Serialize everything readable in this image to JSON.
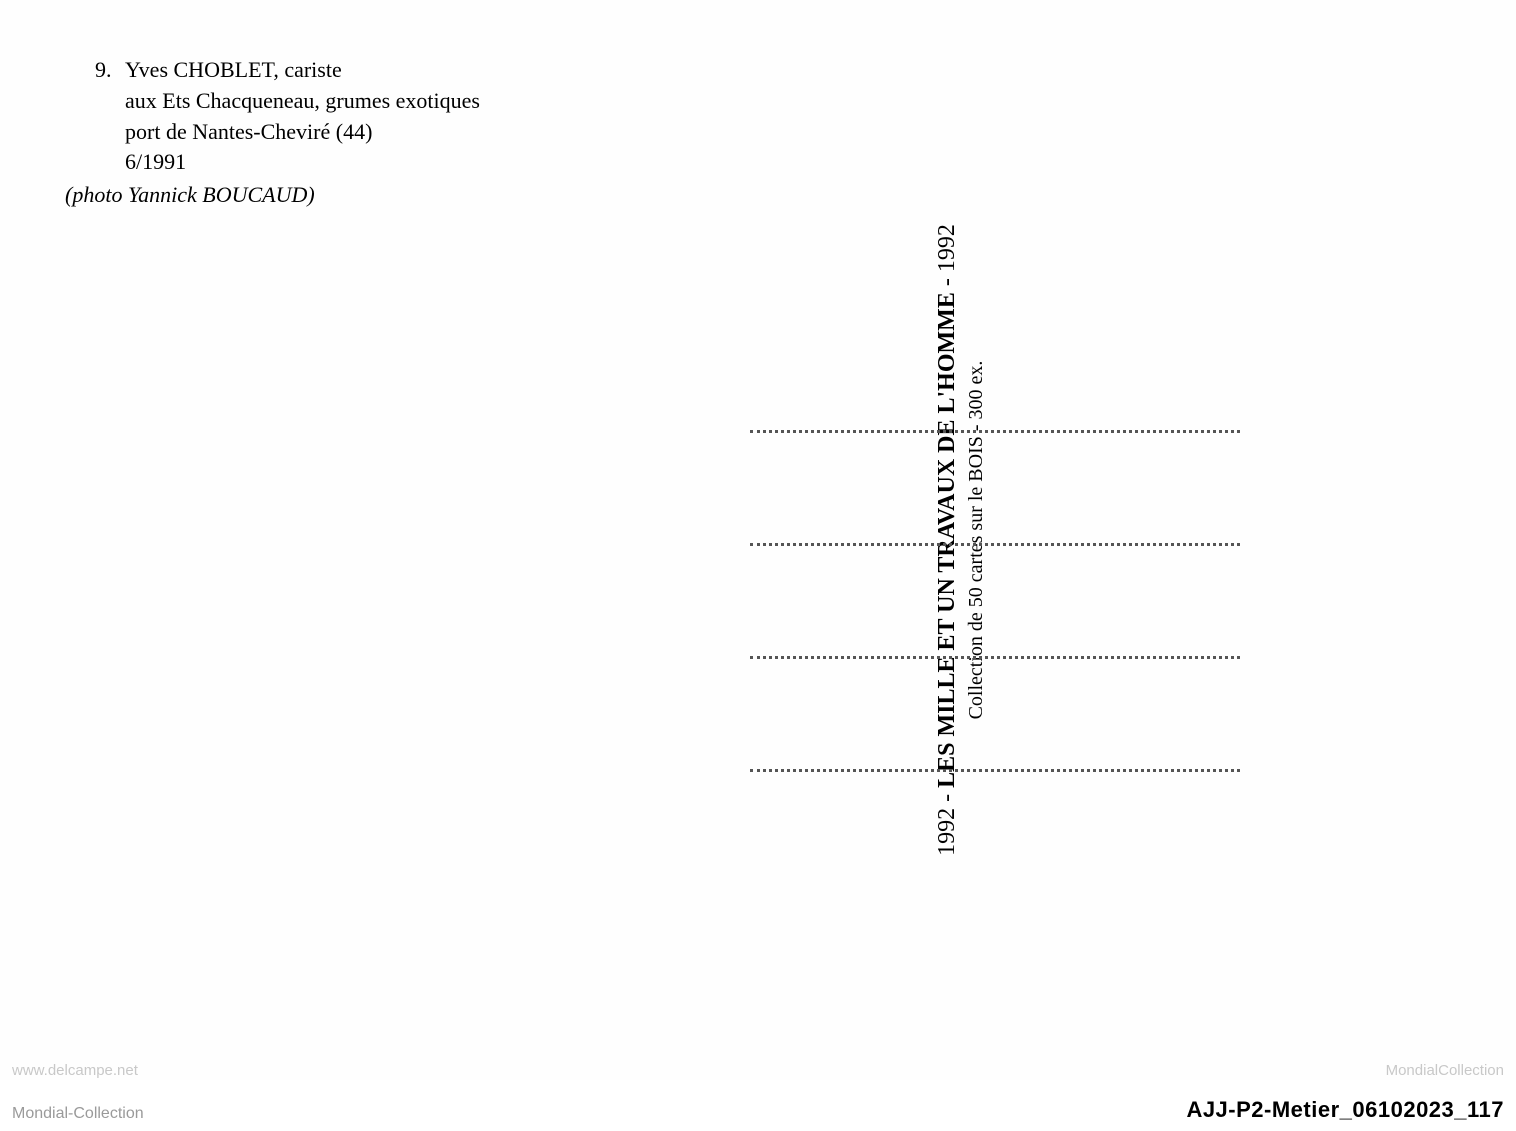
{
  "caption": {
    "number": "9.",
    "line1_part1": "Yves CHOBLET, cariste",
    "line2": "aux Ets Chacqueneau, grumes exotiques",
    "line3": "port de Nantes-Cheviré (44)",
    "line4": "6/1991",
    "photo_credit": "(photo Yannick BOUCAUD)"
  },
  "center": {
    "year_prefix": "1992 - ",
    "title": "LES MILLE ET UN TRAVAUX DE L'HOMME",
    "year_suffix": " - 1992",
    "subtitle": "Collection de 50 cartes sur le BOIS - 300 ex."
  },
  "address_lines": {
    "count": 4,
    "line_spacing_px": 110,
    "dot_color": "#555555"
  },
  "watermark": {
    "left": "www.delcampe.net",
    "right": "MondialCollection"
  },
  "footer": {
    "left": "Mondial-Collection",
    "right": "AJJ-P2-Metier_06102023_117"
  },
  "styling": {
    "background_color": "#ffffff",
    "text_color": "#000000",
    "caption_fontsize": 22,
    "center_title_fontsize": 24,
    "center_subtitle_fontsize": 20,
    "footer_left_color": "#9a9a9a",
    "footer_right_color": "#000000",
    "watermark_color": "#c8c8c8",
    "font_family_serif": "Georgia, Times New Roman, serif",
    "font_family_sans": "Arial, sans-serif"
  }
}
